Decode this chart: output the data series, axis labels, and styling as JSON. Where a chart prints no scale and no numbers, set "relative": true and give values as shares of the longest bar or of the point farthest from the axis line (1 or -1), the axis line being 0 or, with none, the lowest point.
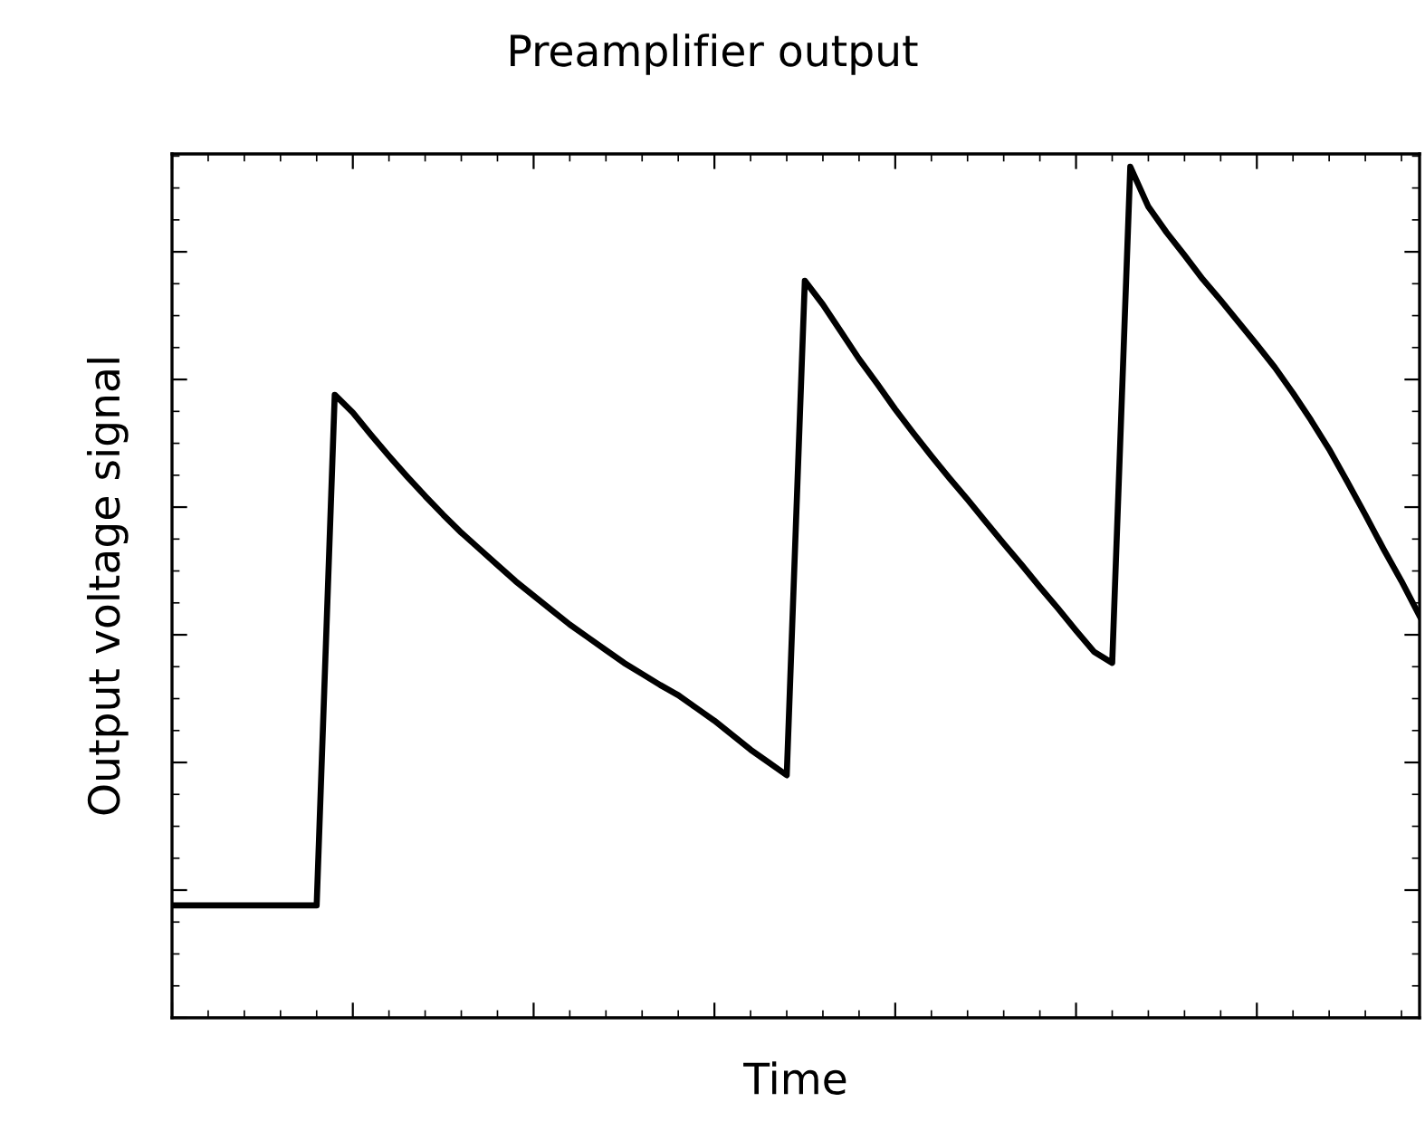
{
  "chart_data": {
    "type": "line",
    "title": "Preamplifier output",
    "xlabel": "Time",
    "ylabel": "Output voltage signal",
    "relative": true,
    "tick_labels": false,
    "grid": false,
    "legend": false,
    "marker": "none",
    "line_style": "solid",
    "categories": [
      null,
      null,
      null,
      null,
      null,
      null,
      null,
      null,
      null,
      null,
      null,
      null,
      null,
      null,
      null,
      null,
      null,
      null,
      null,
      null,
      null,
      null,
      null,
      null,
      null,
      null,
      null,
      null,
      null,
      null,
      null,
      null,
      null,
      null,
      null,
      null,
      null,
      null,
      null,
      null,
      null,
      null,
      null,
      null,
      null,
      null,
      null,
      null,
      null,
      null,
      null,
      null,
      null,
      null,
      null,
      null,
      null,
      null,
      null,
      null,
      null,
      null,
      null,
      null,
      null,
      null,
      null,
      null,
      null,
      null
    ],
    "series": [
      {
        "color": "#000000",
        "values": [
          0.132,
          0.132,
          0.132,
          0.132,
          0.132,
          0.132,
          0.132,
          0.132,
          0.132,
          0.732,
          0.711,
          0.685,
          0.66,
          0.636,
          0.613,
          0.591,
          0.57,
          0.551,
          0.532,
          0.513,
          0.496,
          0.479,
          0.462,
          0.447,
          0.432,
          0.417,
          0.404,
          0.391,
          0.379,
          0.364,
          0.349,
          0.332,
          0.315,
          0.3,
          0.285,
          0.866,
          0.838,
          0.806,
          0.774,
          0.745,
          0.715,
          0.687,
          0.66,
          0.634,
          0.609,
          0.583,
          0.557,
          0.532,
          0.506,
          0.481,
          0.455,
          0.43,
          0.417,
          1.0,
          0.953,
          0.923,
          0.896,
          0.868,
          0.843,
          0.817,
          0.791,
          0.764,
          0.734,
          0.702,
          0.668,
          0.63,
          0.591,
          0.551,
          0.513,
          0.472
        ]
      }
    ]
  }
}
